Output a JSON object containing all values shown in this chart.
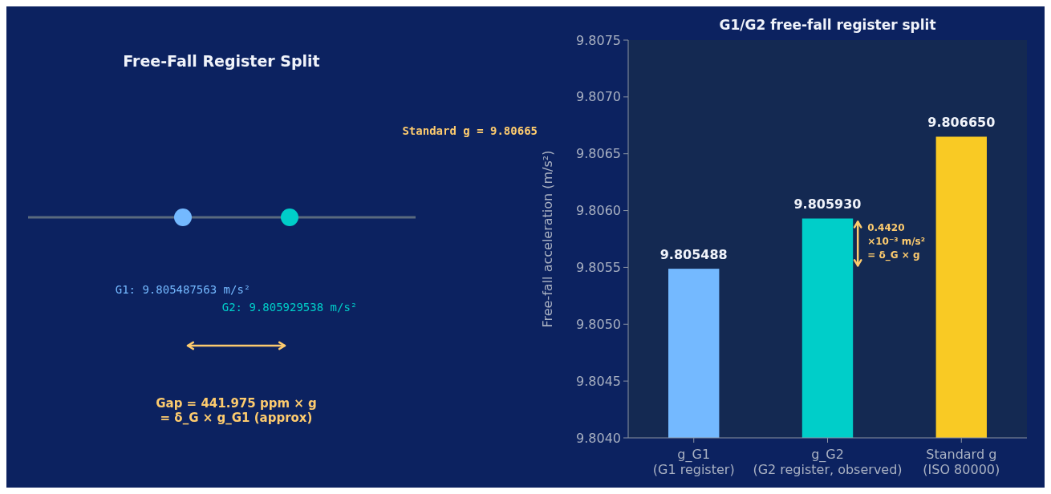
{
  "chart_data": [
    {
      "type": "other",
      "title": "Free-Fall Register Split",
      "colors": [
        "#74b9ff",
        "#00cec9"
      ],
      "value_labels": [
        "G1: 9.805487563 m/s²",
        "G2: 9.805929538 m/s²"
      ],
      "annotations": [
        "Standard g = 9.80665",
        "Gap = 441.975 ppm × g\n= δ_G × g_G1 (approx)"
      ]
    },
    {
      "type": "bar",
      "title": "G1/G2 free-fall register split",
      "categories": [
        "g_G1\n(G1 register)",
        "g_G2\n(G2 register, observed)",
        "Standard g\n(ISO 80000)"
      ],
      "values": [
        9.805488,
        9.80593,
        9.80665
      ],
      "colors": [
        "#74b9ff",
        "#00cec9",
        "#f9ca24"
      ],
      "value_labels": [
        "9.805488",
        "9.805930",
        "9.806650"
      ],
      "ylabel": "Free-fall acceleration (m/s²)",
      "ylim": [
        9.804,
        9.8075
      ],
      "yticks": [
        {
          "value": 9.804,
          "label": "9.8040"
        },
        {
          "value": 9.8045,
          "label": "9.8045"
        },
        {
          "value": 9.805,
          "label": "9.8050"
        },
        {
          "value": 9.8055,
          "label": "9.8055"
        },
        {
          "value": 9.806,
          "label": "9.8060"
        },
        {
          "value": 9.8065,
          "label": "9.8065"
        },
        {
          "value": 9.807,
          "label": "9.8070"
        },
        {
          "value": 9.8075,
          "label": "9.8075"
        }
      ],
      "grid": false,
      "annotations": [
        "0.4420\n×10⁻³ m/s²\n= δ_G × g"
      ]
    }
  ]
}
